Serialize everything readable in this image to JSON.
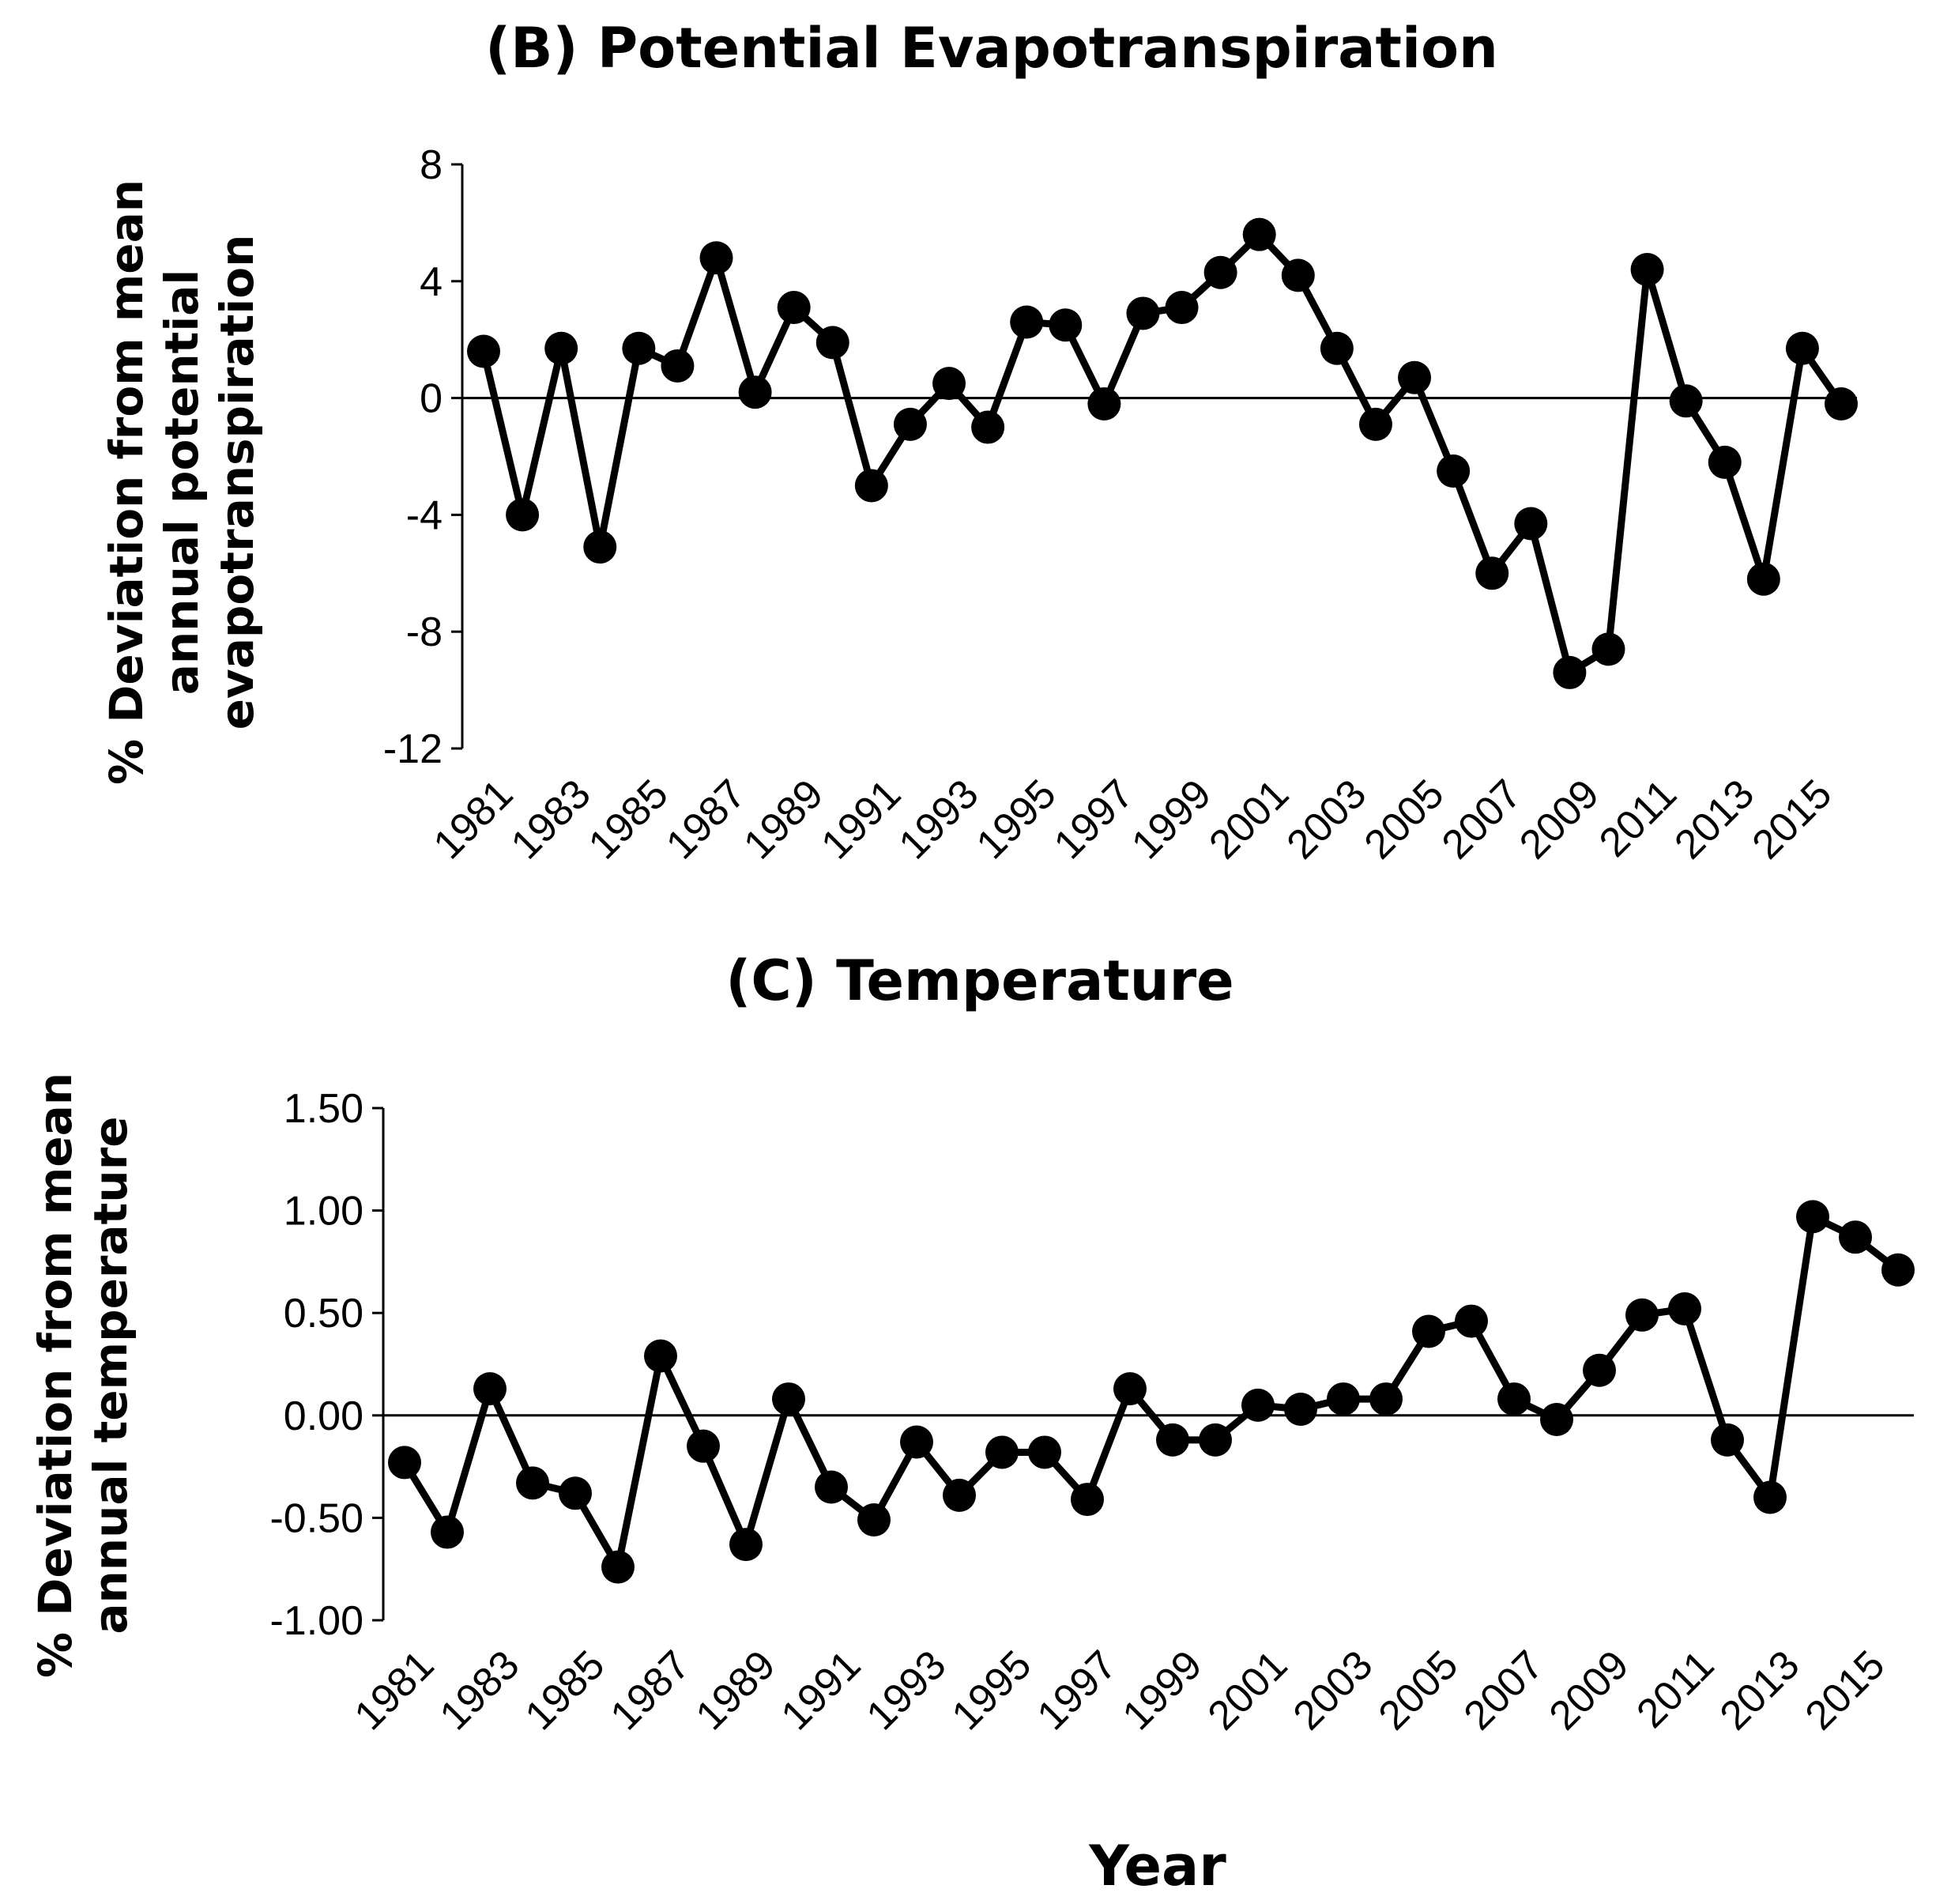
{
  "chart_data": [
    {
      "type": "line",
      "title": "(B) Potential Evapotranspiration",
      "ylabel_lines": [
        "% Deviation from mean",
        "annual potential",
        "evapotranspiration"
      ],
      "xlabel": "",
      "ylim": [
        -12,
        8
      ],
      "yticks": [
        8,
        4,
        0,
        -4,
        -8,
        -12
      ],
      "ytick_labels": [
        "8",
        "4",
        "0",
        "-4",
        "-8",
        "-12"
      ],
      "x": [
        1981,
        1982,
        1983,
        1984,
        1985,
        1986,
        1987,
        1988,
        1989,
        1990,
        1991,
        1992,
        1993,
        1994,
        1995,
        1996,
        1997,
        1998,
        1999,
        2000,
        2001,
        2002,
        2003,
        2004,
        2005,
        2006,
        2007,
        2008,
        2009,
        2010,
        2011,
        2012,
        2013,
        2014,
        2015,
        2016
      ],
      "xtick_labels": [
        "1981",
        "1983",
        "1985",
        "1987",
        "1989",
        "1991",
        "1993",
        "1995",
        "1997",
        "1999",
        "2001",
        "2003",
        "2005",
        "2007",
        "2009",
        "2011",
        "2013",
        "2015"
      ],
      "series": [
        {
          "name": "Potential Evapotranspiration",
          "values": [
            1.6,
            -4.0,
            1.7,
            -5.1,
            1.7,
            1.1,
            4.8,
            0.2,
            3.1,
            1.9,
            -3.0,
            -0.9,
            0.5,
            -1.0,
            2.6,
            2.5,
            -0.2,
            2.9,
            3.1,
            4.3,
            5.6,
            4.2,
            1.7,
            -0.9,
            0.7,
            -2.5,
            -6.0,
            -4.3,
            -9.4,
            -8.6,
            4.4,
            -0.1,
            -2.2,
            -6.2,
            1.7,
            -0.2
          ]
        }
      ]
    },
    {
      "type": "line",
      "title": "(C) Temperature",
      "ylabel_lines": [
        "% Deviation from mean",
        "annual temperature"
      ],
      "xlabel": "Year",
      "ylim": [
        -1.0,
        1.5
      ],
      "yticks": [
        1.5,
        1.0,
        0.5,
        0.0,
        -0.5,
        -1.0
      ],
      "ytick_labels": [
        "1.50",
        "1.00",
        "0.50",
        "0.00",
        "-0.50",
        "-1.00"
      ],
      "x": [
        1981,
        1982,
        1983,
        1984,
        1985,
        1986,
        1987,
        1988,
        1989,
        1990,
        1991,
        1992,
        1993,
        1994,
        1995,
        1996,
        1997,
        1998,
        1999,
        2000,
        2001,
        2002,
        2003,
        2004,
        2005,
        2006,
        2007,
        2008,
        2009,
        2010,
        2011,
        2012,
        2013,
        2014,
        2015,
        2016
      ],
      "xtick_labels": [
        "1981",
        "1983",
        "1985",
        "1987",
        "1989",
        "1991",
        "1993",
        "1995",
        "1997",
        "1999",
        "2001",
        "2003",
        "2005",
        "2007",
        "2009",
        "2011",
        "2013",
        "2015"
      ],
      "series": [
        {
          "name": "Temperature",
          "values": [
            -0.23,
            -0.57,
            0.13,
            -0.33,
            -0.38,
            -0.74,
            0.29,
            -0.15,
            -0.63,
            0.08,
            -0.35,
            -0.51,
            -0.13,
            -0.39,
            -0.18,
            -0.18,
            -0.41,
            0.13,
            -0.12,
            -0.12,
            0.05,
            0.03,
            0.08,
            0.08,
            0.41,
            0.46,
            0.08,
            -0.02,
            0.22,
            0.49,
            0.52,
            -0.12,
            -0.4,
            0.97,
            0.87,
            0.71
          ]
        }
      ]
    }
  ]
}
